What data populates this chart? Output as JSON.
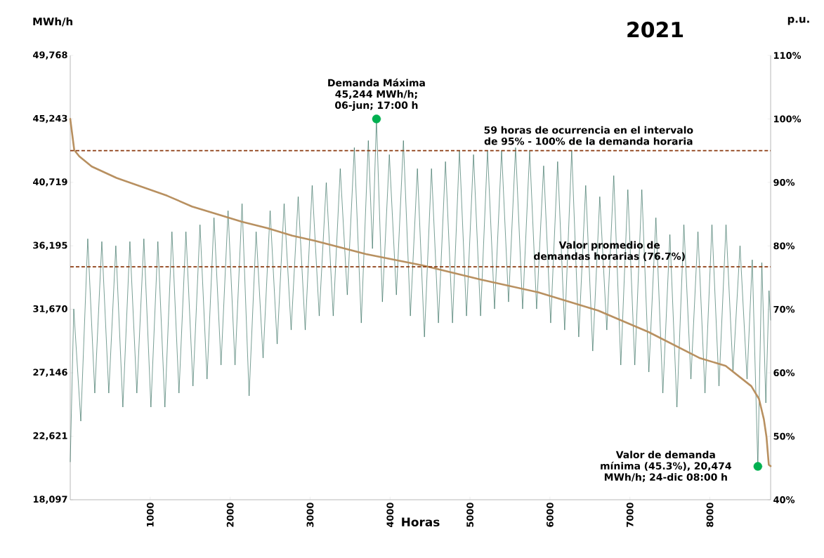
{
  "chart_data": {
    "type": "line",
    "title": "2021",
    "xlabel": "Horas",
    "ylabel": "MWh/h",
    "y2label": "p.u.",
    "xlim": [
      0,
      8760
    ],
    "xticks": [
      1000,
      2000,
      3000,
      4000,
      5000,
      6000,
      7000,
      8000
    ],
    "ylim": [
      18097,
      49768
    ],
    "yticks": [
      {
        "value": 18097,
        "label": "18,097"
      },
      {
        "value": 22621,
        "label": "22,621"
      },
      {
        "value": 27146,
        "label": "27,146"
      },
      {
        "value": 31670,
        "label": "31,670"
      },
      {
        "value": 36195,
        "label": "36,195"
      },
      {
        "value": 40719,
        "label": "40,719"
      },
      {
        "value": 45243,
        "label": "45,243"
      },
      {
        "value": 49768,
        "label": "49,768"
      }
    ],
    "y2lim": [
      40,
      110
    ],
    "y2ticks": [
      {
        "value": 40,
        "label": "40%"
      },
      {
        "value": 50,
        "label": "50%"
      },
      {
        "value": 60,
        "label": "60%"
      },
      {
        "value": 70,
        "label": "70%"
      },
      {
        "value": 80,
        "label": "80%"
      },
      {
        "value": 90,
        "label": "90%"
      },
      {
        "value": 100,
        "label": "100%"
      },
      {
        "value": 110,
        "label": "110%"
      }
    ],
    "series": [
      {
        "color": "#1e5e4e",
        "x": [
          0,
          44,
          132,
          219,
          307,
          395,
          482,
          570,
          658,
          746,
          833,
          921,
          1009,
          1096,
          1184,
          1272,
          1360,
          1447,
          1535,
          1623,
          1711,
          1798,
          1886,
          1974,
          2061,
          2149,
          2237,
          2325,
          2412,
          2500,
          2588,
          2675,
          2763,
          2851,
          2939,
          3026,
          3114,
          3202,
          3289,
          3377,
          3465,
          3553,
          3640,
          3728,
          3780,
          3830,
          3904,
          3991,
          4079,
          4167,
          4254,
          4342,
          4430,
          4518,
          4605,
          4693,
          4781,
          4868,
          4956,
          5044,
          5132,
          5219,
          5307,
          5395,
          5482,
          5570,
          5658,
          5746,
          5833,
          5921,
          6009,
          6096,
          6184,
          6272,
          6360,
          6447,
          6535,
          6623,
          6711,
          6798,
          6886,
          6974,
          7061,
          7149,
          7237,
          7325,
          7412,
          7500,
          7588,
          7675,
          7763,
          7851,
          7939,
          8026,
          8114,
          8202,
          8289,
          8377,
          8465,
          8530,
          8600,
          8650,
          8700,
          8740,
          8760
        ],
        "values": [
          20800,
          31700,
          23700,
          36700,
          25700,
          36500,
          25700,
          36200,
          24700,
          36500,
          25700,
          36700,
          24700,
          36500,
          24700,
          37200,
          25700,
          37200,
          26200,
          37700,
          26700,
          38200,
          27700,
          38700,
          27700,
          39200,
          25500,
          37200,
          28200,
          38700,
          29200,
          39200,
          30200,
          39700,
          30200,
          40500,
          31200,
          40700,
          31200,
          41700,
          32700,
          43200,
          30700,
          43700,
          36000,
          45244,
          32200,
          42700,
          32700,
          43700,
          31200,
          41700,
          29700,
          41700,
          30700,
          42200,
          30700,
          43000,
          31200,
          42700,
          31200,
          43000,
          31700,
          43000,
          32200,
          43200,
          31700,
          43000,
          31700,
          41900,
          30700,
          42200,
          30200,
          43000,
          29700,
          40500,
          28700,
          39700,
          30200,
          41200,
          27700,
          40200,
          27700,
          40200,
          27200,
          38200,
          25700,
          37000,
          24700,
          37700,
          26700,
          37200,
          25700,
          37700,
          26200,
          37700,
          27200,
          36200,
          26700,
          35200,
          20474,
          35000,
          25000,
          33000,
          30900
        ]
      },
      {
        "axis": "y2",
        "color": "#b89060",
        "x": [
          0,
          50,
          113,
          269,
          579,
          895,
          1211,
          1523,
          1833,
          2149,
          2465,
          2776,
          3058,
          3698,
          4412,
          5132,
          5847,
          6603,
          7237,
          7877,
          8197,
          8518,
          8614,
          8675,
          8708,
          8737,
          8760
        ],
        "values": [
          100,
          95.1,
          94.1,
          92.5,
          90.7,
          89.3,
          87.9,
          86.2,
          85.0,
          83.8,
          82.8,
          81.6,
          80.8,
          78.7,
          76.9,
          74.7,
          72.7,
          69.8,
          66.4,
          62.3,
          61.1,
          57.9,
          55.9,
          52.7,
          49.9,
          45.5,
          45.3
        ]
      },
      {
        "type": "scatter",
        "color": "#00b050",
        "x": [
          3830,
          8600
        ],
        "values": [
          45244,
          20474
        ]
      }
    ],
    "ref_lines": [
      {
        "axis": "y2",
        "value": 95,
        "label": "59 horas de ocurrencia en el intervalo de 95% - 100% de la demanda horaria",
        "color": "#8b3a0f",
        "line_style": "dashed"
      },
      {
        "axis": "y2",
        "value": 76.7,
        "label": "Valor promedio de demandas horarias (76.7%)",
        "color": "#8b3a0f",
        "line_style": "dashed"
      }
    ],
    "annotations": [
      {
        "text": "Demanda Máxima 45,244 MWh/h; 06-jun; 17:00 h",
        "x": 3830,
        "y": 45244
      },
      {
        "text": "Valor de demanda mínima (45.3%), 20,474 MWh/h; 24-dic 08:00 h",
        "x": 8600,
        "y": 20474
      }
    ]
  }
}
